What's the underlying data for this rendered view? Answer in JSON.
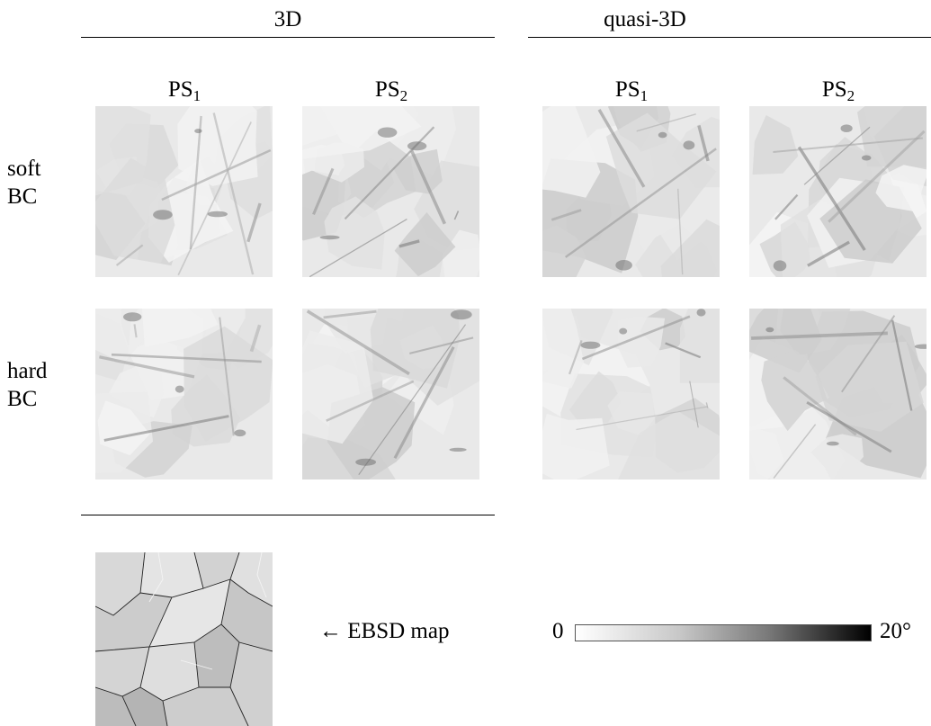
{
  "headers": {
    "group_3d": "3D",
    "group_quasi": "quasi-3D"
  },
  "columns": {
    "ps1": {
      "base": "PS",
      "sub": "1"
    },
    "ps2": {
      "base": "PS",
      "sub": "2"
    }
  },
  "rows": {
    "soft": {
      "line1": "soft",
      "line2": "BC"
    },
    "hard": {
      "line1": "hard",
      "line2": "BC"
    }
  },
  "ebsd": {
    "caption": "← EBSD map"
  },
  "colorbar": {
    "min_label": "0",
    "max_label": "20°",
    "min_color": "#ffffff",
    "max_color": "#000000"
  }
}
